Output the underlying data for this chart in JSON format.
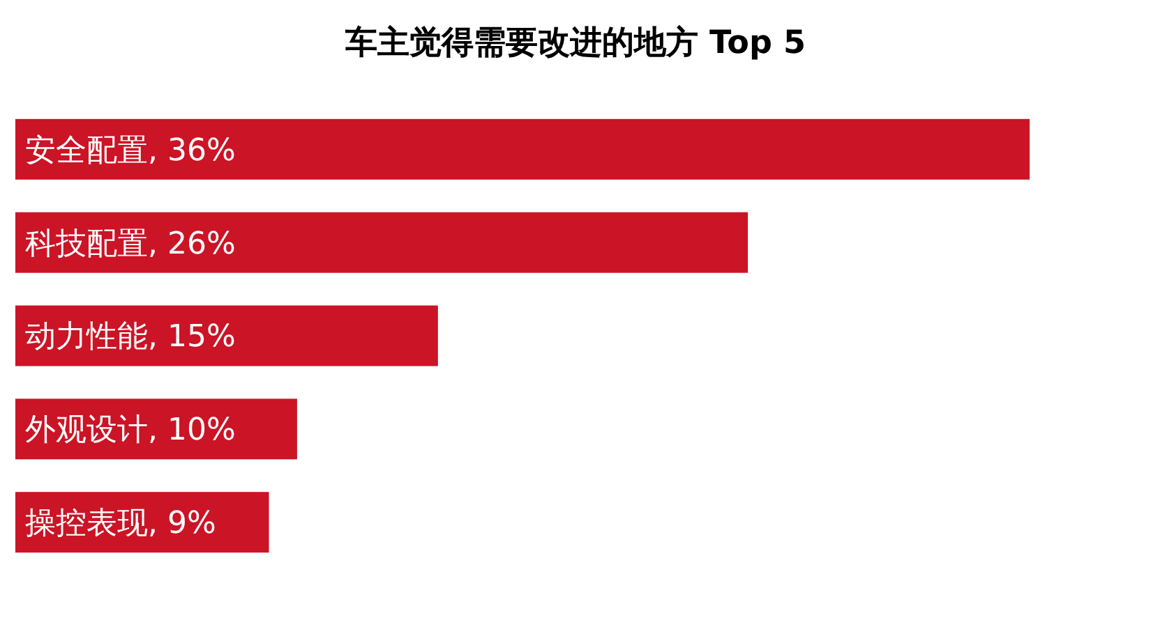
{
  "chart_data": {
    "type": "bar",
    "orientation": "horizontal",
    "title": "车主觉得需要改进的地方 Top 5",
    "categories": [
      "安全配置",
      "科技配置",
      "动力性能",
      "外观设计",
      "操控表现"
    ],
    "values": [
      36,
      26,
      15,
      10,
      9
    ],
    "value_labels": [
      ", 36%",
      ", 26%",
      ", 15%",
      ", 10%",
      ", 9%"
    ],
    "color": "#cb1426"
  }
}
